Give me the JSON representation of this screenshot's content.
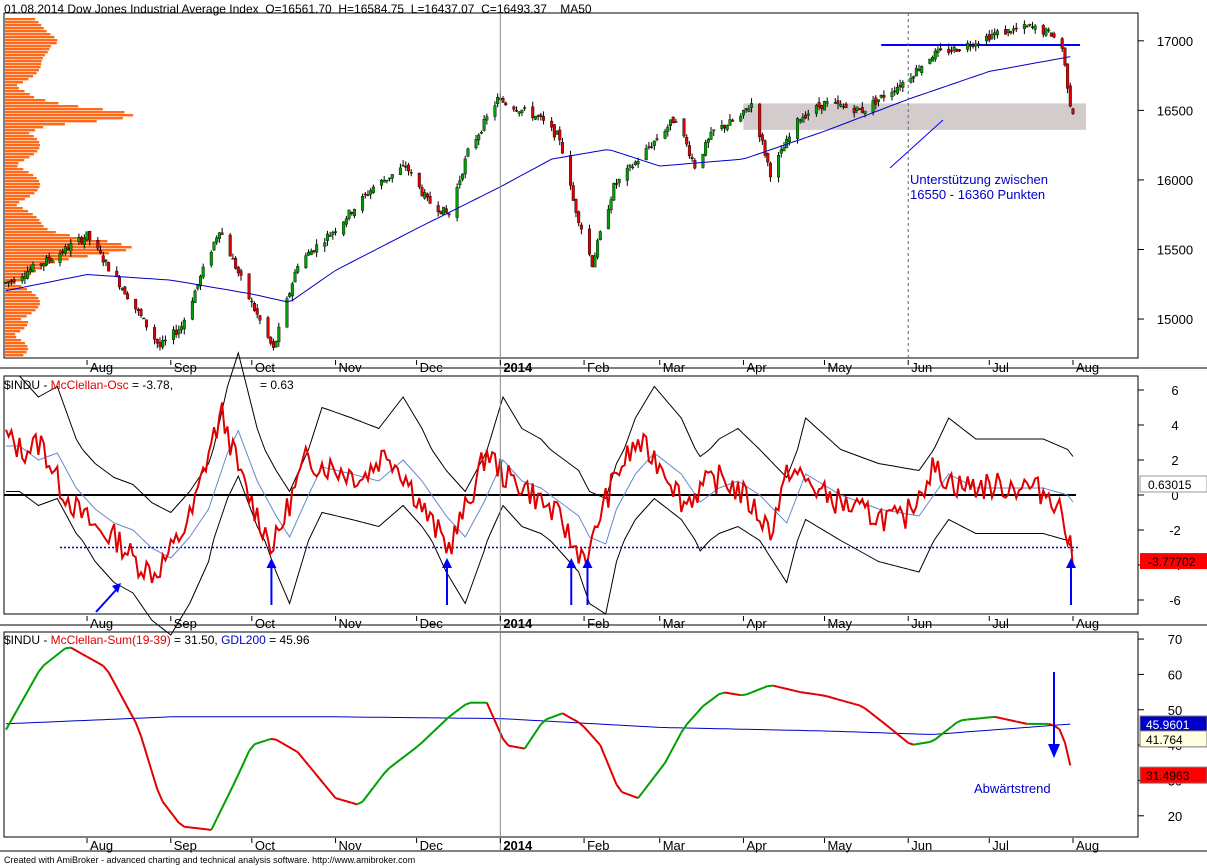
{
  "header": {
    "price": "01.08.2014 Dow Jones Industrial Average Index  O=16561.70  H=16584.75  L=16437.07  C=16493.37    MA50",
    "osc_symbol": "$INDU - ",
    "osc_name": "McClellan-Osc",
    "osc_value": " = -3.78,",
    "osc_value2": "= 0.63",
    "sum_symbol": "$INDU - ",
    "sum_name": "McClellan-Sum(19-39)",
    "sum_value": " = 31.50, ",
    "sum_gdl": "GDL200",
    "sum_gdl_value": " = 45.96"
  },
  "annotations": {
    "support_line1": "Unterstützung zwischen",
    "support_line2": "16550 - 16360 Punkten",
    "downtrend": "Abwärtstrend"
  },
  "footer": "Created with AmiBroker - advanced charting and technical analysis software. http://www.amibroker.com",
  "colors": {
    "bull_candle": "#00a000",
    "bear_candle": "#e00000",
    "ma": "#0000c8",
    "volume_profile": "#ff6a1a",
    "support_zone": "#d4cccc",
    "osc": "#e00000",
    "sum_up": "#00a000",
    "sum_down": "#e00000"
  },
  "chart_data": [
    {
      "type": "candlestick",
      "title": "Dow Jones Industrial Average Index",
      "x_labels": [
        "Aug",
        "Sep",
        "Oct",
        "Nov",
        "Dec",
        "2014",
        "Feb",
        "Mar",
        "Apr",
        "May",
        "Jun",
        "Jul",
        "Aug"
      ],
      "ylim": [
        14720,
        17200
      ],
      "y_ticks": [
        15000,
        15500,
        16000,
        16500,
        17000
      ],
      "series": [
        {
          "name": "MA50"
        }
      ],
      "price_points": [
        [
          "2013-07-01",
          15250
        ],
        [
          "2013-07-20",
          15450
        ],
        [
          "2013-08-01",
          15600
        ],
        [
          "2013-08-15",
          15200
        ],
        [
          "2013-08-28",
          14800
        ],
        [
          "2013-09-05",
          14950
        ],
        [
          "2013-09-19",
          15650
        ],
        [
          "2013-09-30",
          15150
        ],
        [
          "2013-10-09",
          14780
        ],
        [
          "2013-10-18",
          15400
        ],
        [
          "2013-11-01",
          15650
        ],
        [
          "2013-11-15",
          15950
        ],
        [
          "2013-11-27",
          16100
        ],
        [
          "2013-12-05",
          15850
        ],
        [
          "2013-12-13",
          15750
        ],
        [
          "2013-12-20",
          16200
        ],
        [
          "2013-12-31",
          16580
        ],
        [
          "2014-01-15",
          16450
        ],
        [
          "2014-01-23",
          16300
        ],
        [
          "2014-01-28",
          15850
        ],
        [
          "2014-02-04",
          15400
        ],
        [
          "2014-02-12",
          15950
        ],
        [
          "2014-02-28",
          16300
        ],
        [
          "2014-03-07",
          16450
        ],
        [
          "2014-03-14",
          16100
        ],
        [
          "2014-03-21",
          16350
        ],
        [
          "2014-03-31",
          16450
        ],
        [
          "2014-04-04",
          16550
        ],
        [
          "2014-04-11",
          16050
        ],
        [
          "2014-04-22",
          16450
        ],
        [
          "2014-05-01",
          16550
        ],
        [
          "2014-05-15",
          16500
        ],
        [
          "2014-05-30",
          16700
        ],
        [
          "2014-06-10",
          16900
        ],
        [
          "2014-06-20",
          16950
        ],
        [
          "2014-07-03",
          17050
        ],
        [
          "2014-07-16",
          17100
        ],
        [
          "2014-07-24",
          17050
        ],
        [
          "2014-07-28",
          16950
        ],
        [
          "2014-07-31",
          16550
        ],
        [
          "2014-08-01",
          16493
        ]
      ],
      "ma_points": [
        [
          "2013-07-01",
          15200
        ],
        [
          "2013-08-01",
          15320
        ],
        [
          "2013-09-01",
          15280
        ],
        [
          "2013-10-01",
          15180
        ],
        [
          "2013-10-15",
          15120
        ],
        [
          "2013-11-01",
          15350
        ],
        [
          "2013-12-01",
          15650
        ],
        [
          "2014-01-01",
          15950
        ],
        [
          "2014-01-20",
          16150
        ],
        [
          "2014-02-10",
          16220
        ],
        [
          "2014-03-01",
          16100
        ],
        [
          "2014-04-01",
          16150
        ],
        [
          "2014-05-01",
          16350
        ],
        [
          "2014-06-01",
          16580
        ],
        [
          "2014-07-01",
          16780
        ],
        [
          "2014-08-01",
          16890
        ]
      ],
      "support_zone": [
        16360,
        16550
      ],
      "resistance_line": 16970,
      "volume_profile": "horizontal price histogram at left edge"
    },
    {
      "type": "line",
      "title": "McClellan-Osc",
      "ylim": [
        -6.8,
        6.8
      ],
      "y_ticks": [
        6,
        4,
        2,
        0,
        -2,
        -4,
        -6
      ],
      "last_value": -3.77702,
      "signal_value": 0.63015,
      "reference_level": -3,
      "points": [
        [
          "2013-07-01",
          3.5
        ],
        [
          "2013-07-08",
          2.5
        ],
        [
          "2013-07-15",
          3.0
        ],
        [
          "2013-07-22",
          0.5
        ],
        [
          "2013-07-29",
          -1.0
        ],
        [
          "2013-08-05",
          -2.0
        ],
        [
          "2013-08-12",
          -2.5
        ],
        [
          "2013-08-19",
          -3.8
        ],
        [
          "2013-08-26",
          -4.5
        ],
        [
          "2013-09-02",
          -3.0
        ],
        [
          "2013-09-09",
          -1.0
        ],
        [
          "2013-09-16",
          3.0
        ],
        [
          "2013-09-20",
          4.6
        ],
        [
          "2013-09-27",
          1.0
        ],
        [
          "2013-10-04",
          -1.5
        ],
        [
          "2013-10-09",
          -3.0
        ],
        [
          "2013-10-16",
          0.0
        ],
        [
          "2013-10-21",
          2.0
        ],
        [
          "2013-11-01",
          1.5
        ],
        [
          "2013-11-11",
          1.0
        ],
        [
          "2013-11-20",
          2.5
        ],
        [
          "2013-11-27",
          1.0
        ],
        [
          "2013-12-06",
          -1.5
        ],
        [
          "2013-12-13",
          -3.0
        ],
        [
          "2013-12-20",
          -0.5
        ],
        [
          "2013-12-27",
          2.5
        ],
        [
          "2014-01-03",
          1.0
        ],
        [
          "2014-01-10",
          0.5
        ],
        [
          "2014-01-17",
          -0.5
        ],
        [
          "2014-01-24",
          -1.5
        ],
        [
          "2014-01-28",
          -3.0
        ],
        [
          "2014-02-03",
          -3.5
        ],
        [
          "2014-02-07",
          -1.0
        ],
        [
          "2014-02-14",
          1.5
        ],
        [
          "2014-02-21",
          3.0
        ],
        [
          "2014-03-03",
          1.5
        ],
        [
          "2014-03-10",
          -0.5
        ],
        [
          "2014-03-17",
          0.5
        ],
        [
          "2014-03-24",
          1.0
        ],
        [
          "2014-04-01",
          0.0
        ],
        [
          "2014-04-11",
          -2.0
        ],
        [
          "2014-04-18",
          1.5
        ],
        [
          "2014-05-01",
          0.0
        ],
        [
          "2014-05-15",
          -1.0
        ],
        [
          "2014-05-30",
          -1.5
        ],
        [
          "2014-06-10",
          1.5
        ],
        [
          "2014-06-20",
          0.5
        ],
        [
          "2014-07-03",
          0.5
        ],
        [
          "2014-07-15",
          0.5
        ],
        [
          "2014-07-24",
          0.0
        ],
        [
          "2014-07-28",
          -1.0
        ],
        [
          "2014-08-01",
          -3.8
        ]
      ]
    },
    {
      "type": "line",
      "title": "McClellan-Sum(19-39)",
      "ylim": [
        14,
        72
      ],
      "y_ticks": [
        70,
        60,
        50,
        40,
        30,
        20
      ],
      "series": [
        {
          "name": "McClellan-Sum(19-39)",
          "last_value": 31.4963
        },
        {
          "name": "GDL200",
          "last_value": 45.9601
        }
      ],
      "marker_value": 41.764,
      "sum_points": [
        [
          "2013-07-01",
          43
        ],
        [
          "2013-07-15",
          62
        ],
        [
          "2013-07-25",
          68
        ],
        [
          "2013-08-08",
          62
        ],
        [
          "2013-08-20",
          45
        ],
        [
          "2013-08-28",
          25
        ],
        [
          "2013-09-05",
          17
        ],
        [
          "2013-09-16",
          16
        ],
        [
          "2013-09-25",
          30
        ],
        [
          "2013-10-01",
          40
        ],
        [
          "2013-10-09",
          42
        ],
        [
          "2013-10-18",
          38
        ],
        [
          "2013-11-01",
          25
        ],
        [
          "2013-11-10",
          23
        ],
        [
          "2013-11-20",
          33
        ],
        [
          "2013-12-02",
          40
        ],
        [
          "2013-12-13",
          48
        ],
        [
          "2013-12-20",
          52
        ],
        [
          "2013-12-27",
          52
        ],
        [
          "2014-01-03",
          40
        ],
        [
          "2014-01-10",
          39
        ],
        [
          "2014-01-17",
          47
        ],
        [
          "2014-01-24",
          49
        ],
        [
          "2014-01-31",
          46
        ],
        [
          "2014-02-07",
          40
        ],
        [
          "2014-02-14",
          27
        ],
        [
          "2014-02-21",
          25
        ],
        [
          "2014-03-03",
          35
        ],
        [
          "2014-03-10",
          45
        ],
        [
          "2014-03-17",
          51
        ],
        [
          "2014-03-24",
          55
        ],
        [
          "2014-04-01",
          54
        ],
        [
          "2014-04-11",
          57
        ],
        [
          "2014-04-22",
          55
        ],
        [
          "2014-05-01",
          54
        ],
        [
          "2014-05-15",
          51
        ],
        [
          "2014-05-25",
          45
        ],
        [
          "2014-06-02",
          40
        ],
        [
          "2014-06-10",
          41
        ],
        [
          "2014-06-20",
          47
        ],
        [
          "2014-07-03",
          48
        ],
        [
          "2014-07-15",
          46
        ],
        [
          "2014-07-24",
          46
        ],
        [
          "2014-07-28",
          44
        ],
        [
          "2014-08-01",
          31
        ]
      ],
      "gdl_points": [
        [
          "2013-07-01",
          46
        ],
        [
          "2013-09-01",
          48
        ],
        [
          "2013-11-01",
          48
        ],
        [
          "2014-01-01",
          47.5
        ],
        [
          "2014-03-01",
          45
        ],
        [
          "2014-05-01",
          44
        ],
        [
          "2014-06-10",
          43
        ],
        [
          "2014-08-01",
          46
        ]
      ]
    }
  ]
}
